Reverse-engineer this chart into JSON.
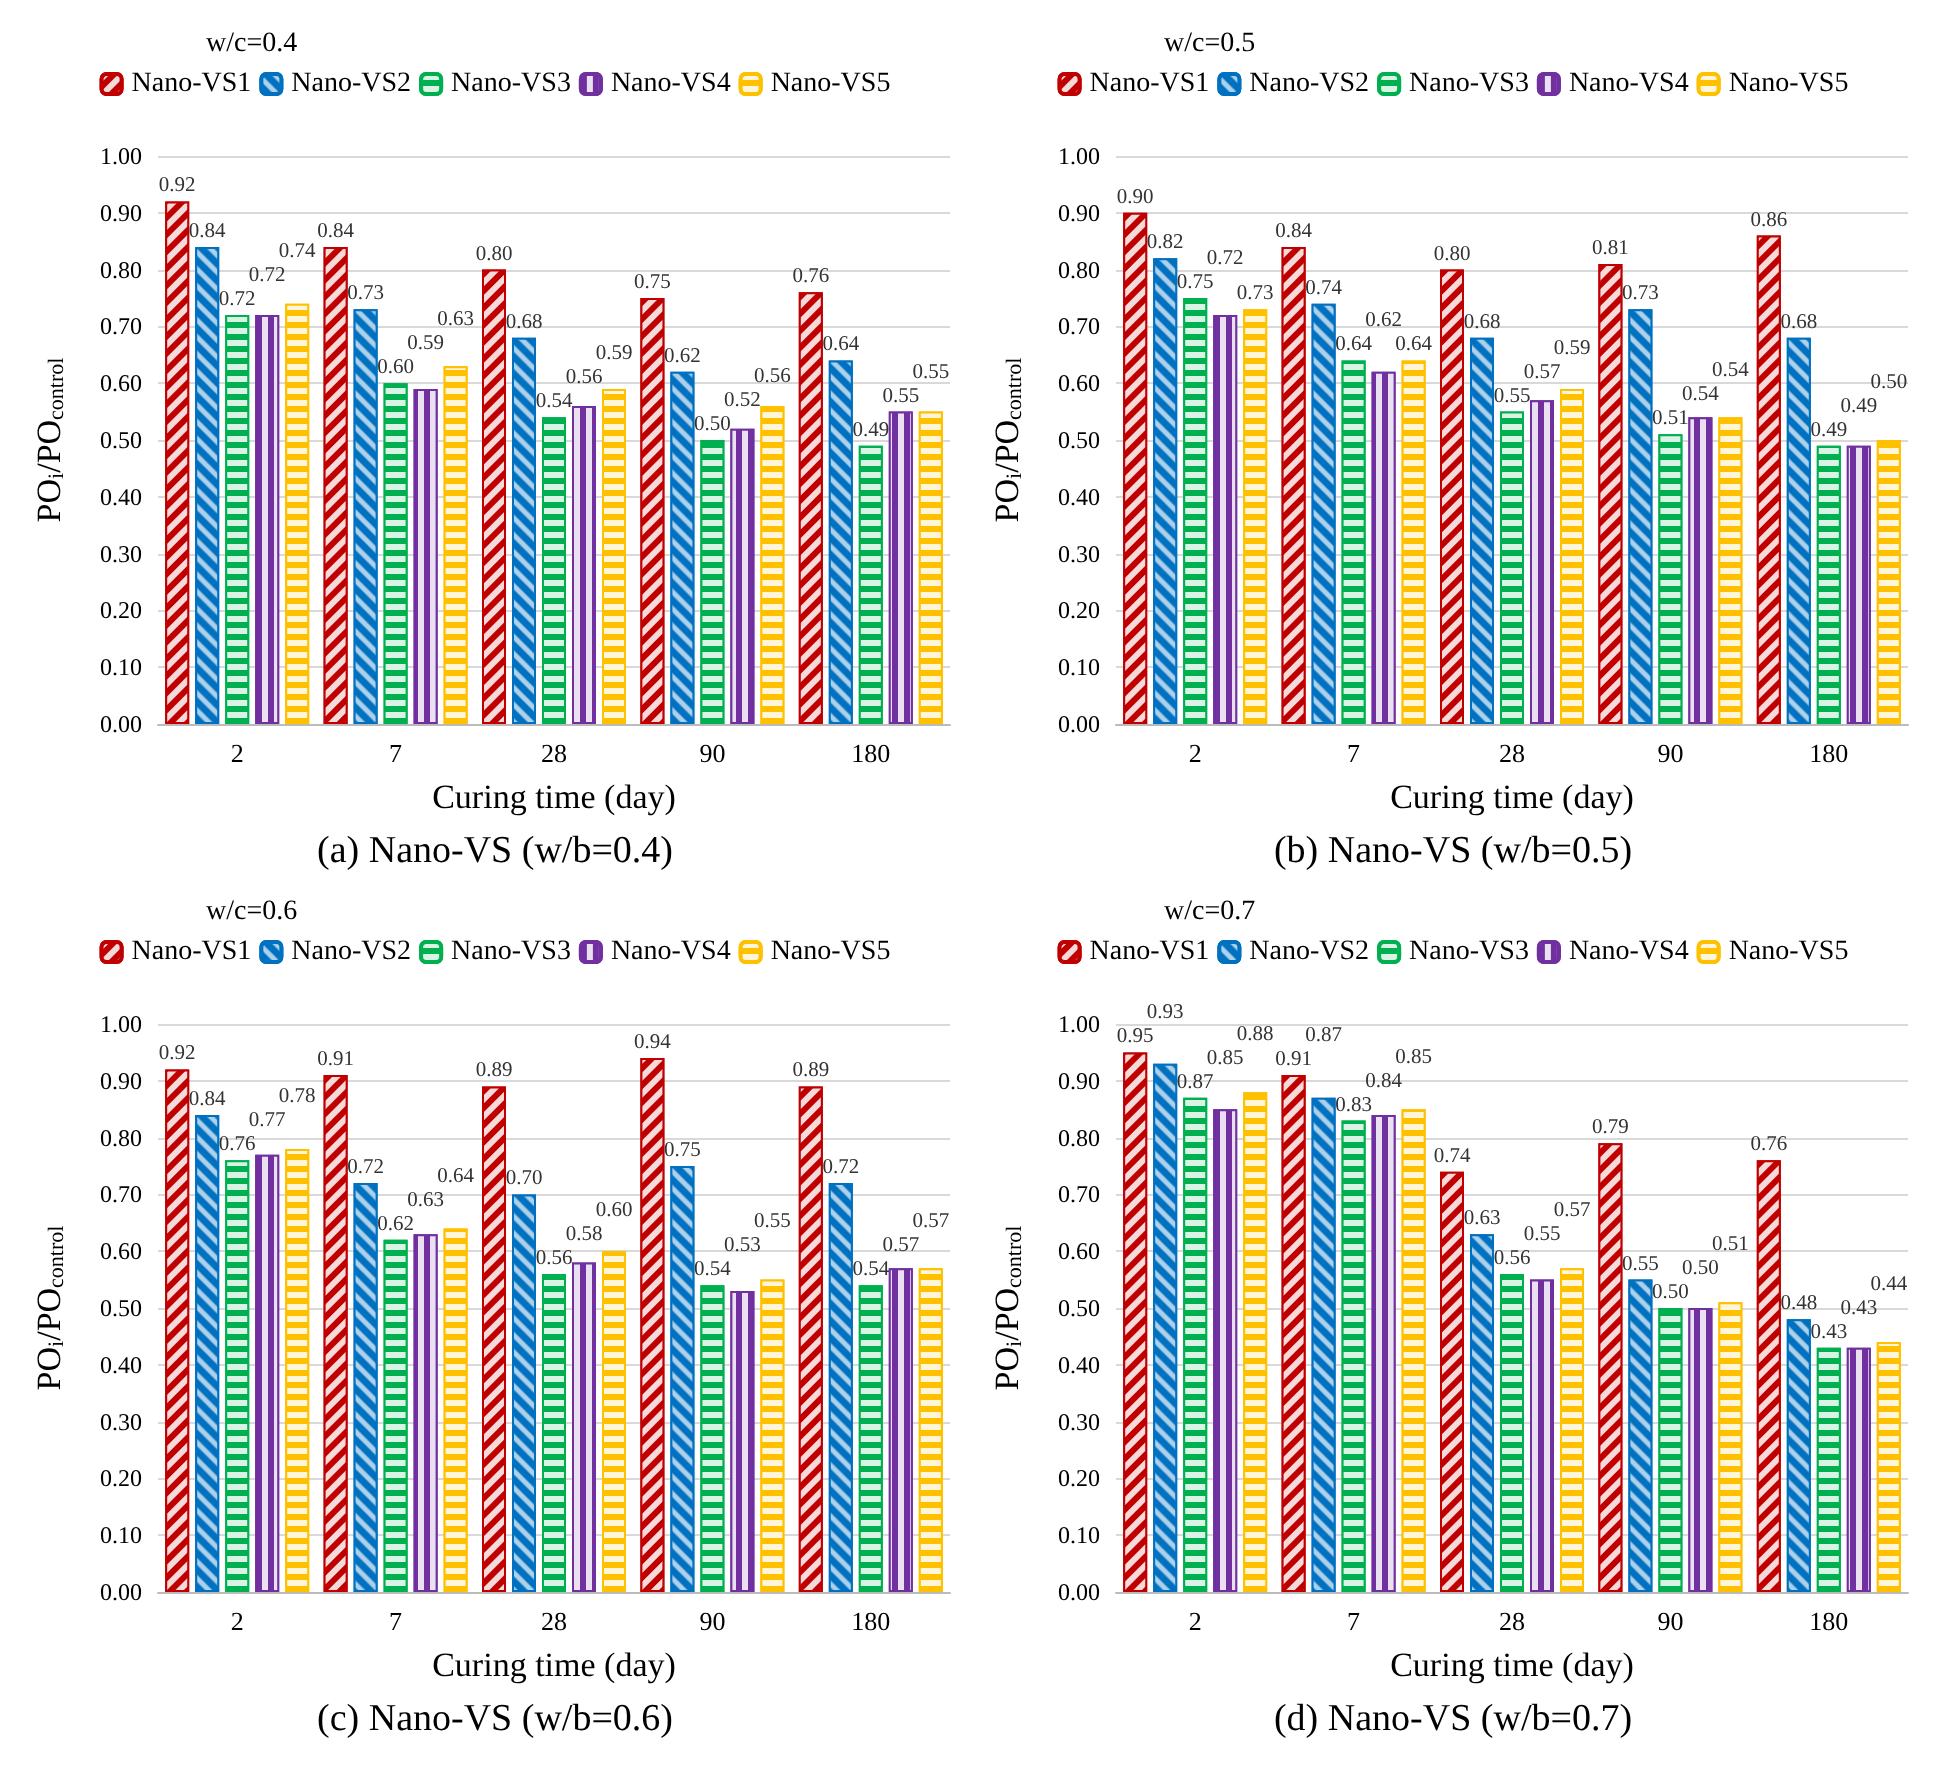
{
  "chart_data": [
    {
      "type": "bar",
      "title": "w/c=0.4",
      "annotations": [
        "(a) Nano-VS (w/b=0.4)"
      ],
      "xlabel": "Curing time (day)",
      "ylabel": "PO$_{i}$/PO$_{control}$",
      "categories": [
        "2",
        "7",
        "28",
        "90",
        "180"
      ],
      "ylim": [
        0,
        1
      ],
      "yticks": [
        {
          "value": 0,
          "label": "0.00"
        },
        {
          "value": 0.1,
          "label": "0.10"
        },
        {
          "value": 0.2,
          "label": "0.20"
        },
        {
          "value": 0.3,
          "label": "0.30"
        },
        {
          "value": 0.4,
          "label": "0.40"
        },
        {
          "value": 0.5,
          "label": "0.50"
        },
        {
          "value": 0.6,
          "label": "0.60"
        },
        {
          "value": 0.7,
          "label": "0.70"
        },
        {
          "value": 0.8,
          "label": "0.80"
        },
        {
          "value": 0.9,
          "label": "0.90"
        },
        {
          "value": 1,
          "label": "1.00"
        }
      ],
      "grid": "y",
      "legend": "top",
      "series": [
        {
          "name": "Nano-VS1",
          "color": "#c00000",
          "values": [
            0.92,
            0.84,
            0.8,
            0.75,
            0.76
          ],
          "value_labels": [
            "0.92",
            "0.84",
            "0.80",
            "0.75",
            "0.76"
          ]
        },
        {
          "name": "Nano-VS2",
          "color": "#0070c0",
          "values": [
            0.84,
            0.73,
            0.68,
            0.62,
            0.64
          ],
          "value_labels": [
            "0.84",
            "0.73",
            "0.68",
            "0.62",
            "0.64"
          ]
        },
        {
          "name": "Nano-VS3",
          "color": "#00b050",
          "values": [
            0.72,
            0.6,
            0.54,
            0.5,
            0.49
          ],
          "value_labels": [
            "0.72",
            "0.60",
            "0.54",
            "0.50",
            "0.49"
          ]
        },
        {
          "name": "Nano-VS4",
          "color": "#7030a0",
          "values": [
            0.72,
            0.59,
            0.56,
            0.52,
            0.55
          ],
          "value_labels": [
            "0.72",
            "0.59",
            "0.56",
            "0.52",
            "0.55"
          ]
        },
        {
          "name": "Nano-VS5",
          "color": "#ffc000",
          "values": [
            0.74,
            0.63,
            0.59,
            0.56,
            0.55
          ],
          "value_labels": [
            "0.74",
            "0.63",
            "0.59",
            "0.56",
            "0.55"
          ]
        }
      ]
    },
    {
      "type": "bar",
      "title": "w/c=0.5",
      "annotations": [
        "(b) Nano-VS (w/b=0.5)"
      ],
      "xlabel": "Curing time (day)",
      "ylabel": "PO$_{i}$/PO$_{control}$",
      "categories": [
        "2",
        "7",
        "28",
        "90",
        "180"
      ],
      "ylim": [
        0,
        1
      ],
      "yticks": [
        {
          "value": 0,
          "label": "0.00"
        },
        {
          "value": 0.1,
          "label": "0.10"
        },
        {
          "value": 0.2,
          "label": "0.20"
        },
        {
          "value": 0.3,
          "label": "0.30"
        },
        {
          "value": 0.4,
          "label": "0.40"
        },
        {
          "value": 0.5,
          "label": "0.50"
        },
        {
          "value": 0.6,
          "label": "0.60"
        },
        {
          "value": 0.7,
          "label": "0.70"
        },
        {
          "value": 0.8,
          "label": "0.80"
        },
        {
          "value": 0.9,
          "label": "0.90"
        },
        {
          "value": 1,
          "label": "1.00"
        }
      ],
      "grid": "y",
      "legend": "top",
      "series": [
        {
          "name": "Nano-VS1",
          "color": "#c00000",
          "values": [
            0.9,
            0.84,
            0.8,
            0.81,
            0.86
          ],
          "value_labels": [
            "0.90",
            "0.84",
            "0.80",
            "0.81",
            "0.86"
          ]
        },
        {
          "name": "Nano-VS2",
          "color": "#0070c0",
          "values": [
            0.82,
            0.74,
            0.68,
            0.73,
            0.68
          ],
          "value_labels": [
            "0.82",
            "0.74",
            "0.68",
            "0.73",
            "0.68"
          ]
        },
        {
          "name": "Nano-VS3",
          "color": "#00b050",
          "values": [
            0.75,
            0.64,
            0.55,
            0.51,
            0.49
          ],
          "value_labels": [
            "0.75",
            "0.64",
            "0.55",
            "0.51",
            "0.49"
          ]
        },
        {
          "name": "Nano-VS4",
          "color": "#7030a0",
          "values": [
            0.72,
            0.62,
            0.57,
            0.54,
            0.49
          ],
          "value_labels": [
            "0.72",
            "0.62",
            "0.57",
            "0.54",
            "0.49"
          ]
        },
        {
          "name": "Nano-VS5",
          "color": "#ffc000",
          "values": [
            0.73,
            0.64,
            0.59,
            0.54,
            0.5
          ],
          "value_labels": [
            "0.73",
            "0.64",
            "0.59",
            "0.54",
            "0.50"
          ]
        }
      ]
    },
    {
      "type": "bar",
      "title": "w/c=0.6",
      "annotations": [
        "(c) Nano-VS (w/b=0.6)"
      ],
      "xlabel": "Curing time (day)",
      "ylabel": "PO$_{i}$/PO$_{control}$",
      "categories": [
        "2",
        "7",
        "28",
        "90",
        "180"
      ],
      "ylim": [
        0,
        1
      ],
      "yticks": [
        {
          "value": 0,
          "label": "0.00"
        },
        {
          "value": 0.1,
          "label": "0.10"
        },
        {
          "value": 0.2,
          "label": "0.20"
        },
        {
          "value": 0.3,
          "label": "0.30"
        },
        {
          "value": 0.4,
          "label": "0.40"
        },
        {
          "value": 0.5,
          "label": "0.50"
        },
        {
          "value": 0.6,
          "label": "0.60"
        },
        {
          "value": 0.7,
          "label": "0.70"
        },
        {
          "value": 0.8,
          "label": "0.80"
        },
        {
          "value": 0.9,
          "label": "0.90"
        },
        {
          "value": 1,
          "label": "1.00"
        }
      ],
      "grid": "y",
      "legend": "top",
      "series": [
        {
          "name": "Nano-VS1",
          "color": "#c00000",
          "values": [
            0.92,
            0.91,
            0.89,
            0.94,
            0.89
          ],
          "value_labels": [
            "0.92",
            "0.91",
            "0.89",
            "0.94",
            "0.89"
          ]
        },
        {
          "name": "Nano-VS2",
          "color": "#0070c0",
          "values": [
            0.84,
            0.72,
            0.7,
            0.75,
            0.72
          ],
          "value_labels": [
            "0.84",
            "0.72",
            "0.70",
            "0.75",
            "0.72"
          ]
        },
        {
          "name": "Nano-VS3",
          "color": "#00b050",
          "values": [
            0.76,
            0.62,
            0.56,
            0.54,
            0.54
          ],
          "value_labels": [
            "0.76",
            "0.62",
            "0.56",
            "0.54",
            "0.54"
          ]
        },
        {
          "name": "Nano-VS4",
          "color": "#7030a0",
          "values": [
            0.77,
            0.63,
            0.58,
            0.53,
            0.57
          ],
          "value_labels": [
            "0.77",
            "0.63",
            "0.58",
            "0.53",
            "0.57"
          ]
        },
        {
          "name": "Nano-VS5",
          "color": "#ffc000",
          "values": [
            0.78,
            0.64,
            0.6,
            0.55,
            0.57
          ],
          "value_labels": [
            "0.78",
            "0.64",
            "0.60",
            "0.55",
            "0.57"
          ]
        }
      ]
    },
    {
      "type": "bar",
      "title": "w/c=0.7",
      "annotations": [
        "(d) Nano-VS (w/b=0.7)"
      ],
      "xlabel": "Curing time (day)",
      "ylabel": "PO$_{i}$/PO$_{control}$",
      "categories": [
        "2",
        "7",
        "28",
        "90",
        "180"
      ],
      "ylim": [
        0,
        1
      ],
      "yticks": [
        {
          "value": 0,
          "label": "0.00"
        },
        {
          "value": 0.1,
          "label": "0.10"
        },
        {
          "value": 0.2,
          "label": "0.20"
        },
        {
          "value": 0.3,
          "label": "0.30"
        },
        {
          "value": 0.4,
          "label": "0.40"
        },
        {
          "value": 0.5,
          "label": "0.50"
        },
        {
          "value": 0.6,
          "label": "0.60"
        },
        {
          "value": 0.7,
          "label": "0.70"
        },
        {
          "value": 0.8,
          "label": "0.80"
        },
        {
          "value": 0.9,
          "label": "0.90"
        },
        {
          "value": 1,
          "label": "1.00"
        }
      ],
      "grid": "y",
      "legend": "top",
      "series": [
        {
          "name": "Nano-VS1",
          "color": "#c00000",
          "values": [
            0.95,
            0.91,
            0.74,
            0.79,
            0.76
          ],
          "value_labels": [
            "0.95",
            "0.91",
            "0.74",
            "0.79",
            "0.76"
          ]
        },
        {
          "name": "Nano-VS2",
          "color": "#0070c0",
          "values": [
            0.93,
            0.87,
            0.63,
            0.55,
            0.48
          ],
          "value_labels": [
            "0.93",
            "0.87",
            "0.63",
            "0.55",
            "0.48"
          ]
        },
        {
          "name": "Nano-VS3",
          "color": "#00b050",
          "values": [
            0.87,
            0.83,
            0.56,
            0.5,
            0.43
          ],
          "value_labels": [
            "0.87",
            "0.83",
            "0.56",
            "0.50",
            "0.43"
          ]
        },
        {
          "name": "Nano-VS4",
          "color": "#7030a0",
          "values": [
            0.85,
            0.84,
            0.55,
            0.5,
            0.43
          ],
          "value_labels": [
            "0.85",
            "0.84",
            "0.55",
            "0.50",
            "0.43"
          ]
        },
        {
          "name": "Nano-VS5",
          "color": "#ffc000",
          "values": [
            0.88,
            0.85,
            0.57,
            0.51,
            0.44
          ],
          "value_labels": [
            "0.88",
            "0.85",
            "0.57",
            "0.51",
            "0.44"
          ]
        }
      ]
    }
  ]
}
